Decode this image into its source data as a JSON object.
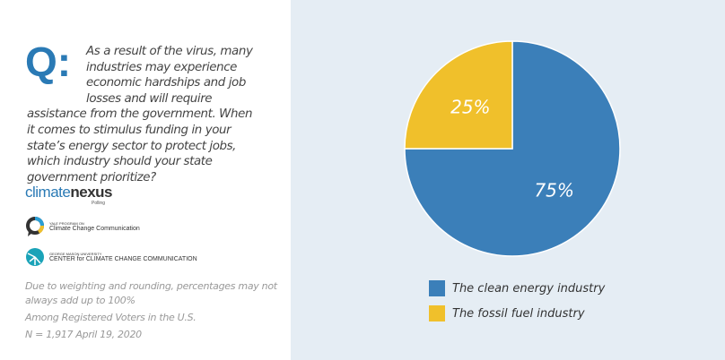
{
  "question": {
    "prefix": "Q:",
    "text": "As a result of the virus, many industries may experience economic hardships and job losses and will require assistance from the government. When it comes to stimulus funding in your state’s energy sector to protect jobs, which industry should your state government prioritize?"
  },
  "logos": {
    "climatenexus": {
      "main": "climate",
      "bold": "nexus",
      "sub": "Polling"
    },
    "yale": {
      "small": "YALE PROGRAM ON",
      "name": "Climate Change Communication"
    },
    "gmu": {
      "small": "GEORGE MASON UNIVERSITY",
      "name": "CENTER for CLIMATE CHANGE COMMUNICATION"
    }
  },
  "notes": {
    "rounding": "Due to weighting and rounding, percentages may not always add up to 100%",
    "population": "Among Registered Voters in the U.S.",
    "sample": "N = 1,917 April 19, 2020"
  },
  "chart_data": {
    "type": "pie",
    "slices": [
      {
        "label": "The clean energy industry",
        "value": 75,
        "display": "75%",
        "color": "#3b7fb9"
      },
      {
        "label": "The fossil fuel industry",
        "value": 25,
        "display": "25%",
        "color": "#f0c02b"
      }
    ],
    "legend": "bottom"
  }
}
